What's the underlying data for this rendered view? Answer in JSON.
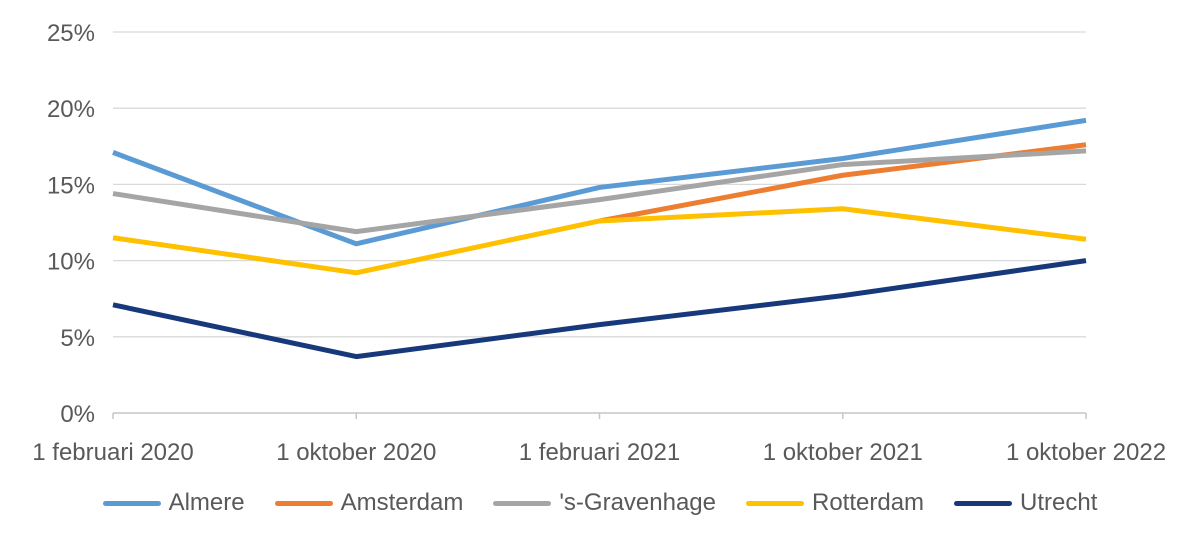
{
  "chart_data": {
    "type": "line",
    "title": "",
    "categories": [
      "1 februari 2020",
      "1 oktober 2020",
      "1 februari 2021",
      "1 oktober 2021",
      "1 oktober 2022"
    ],
    "series": [
      {
        "name": "Almere",
        "color": "#5B9BD5",
        "values": [
          17.1,
          11.1,
          14.8,
          16.7,
          19.2
        ]
      },
      {
        "name": "Amsterdam",
        "color": "#ED7D31",
        "values": [
          null,
          null,
          12.6,
          15.6,
          17.6
        ]
      },
      {
        "name": "'s-Gravenhage",
        "color": "#A5A5A5",
        "values": [
          14.4,
          11.9,
          14.0,
          16.3,
          17.2
        ]
      },
      {
        "name": "Rotterdam",
        "color": "#FFC000",
        "values": [
          11.5,
          9.2,
          12.6,
          13.4,
          11.4
        ]
      },
      {
        "name": "Utrecht",
        "color": "#17397C",
        "values": [
          7.1,
          3.7,
          5.8,
          7.7,
          10.0
        ]
      }
    ],
    "ylim": [
      0,
      25
    ],
    "ytick_step": 5,
    "ytick_labels": [
      "0%",
      "5%",
      "10%",
      "15%",
      "20%",
      "25%"
    ],
    "xlabel": "",
    "ylabel": "",
    "grid": true,
    "legend_position": "bottom",
    "colors": {
      "grid_color": "#D9D9D9",
      "axis_color": "#C6C6C6",
      "text_color": "#595959",
      "background": "#FFFFFF"
    }
  }
}
